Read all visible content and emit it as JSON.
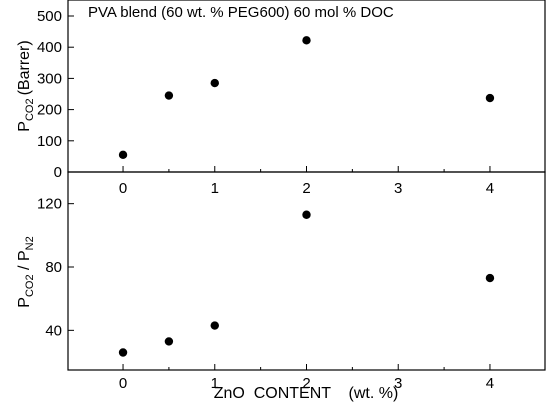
{
  "chart_data": [
    {
      "type": "scatter",
      "title": "PVA blend (60 wt. % PEG600) 60 mol % DOC",
      "ylabel_main": "P",
      "ylabel_sub": "CO2",
      "ylabel_unit": "(Barrer)",
      "xlim": [
        -0.6,
        4.6
      ],
      "ylim": [
        0,
        500
      ],
      "xticks": [
        "0",
        "1",
        "2",
        "3",
        "4"
      ],
      "yticks": [
        "0",
        "100",
        "200",
        "300",
        "400",
        "500"
      ],
      "marker_color": "#000000",
      "points": [
        {
          "x": 0,
          "y": 55
        },
        {
          "x": 0.5,
          "y": 245
        },
        {
          "x": 1,
          "y": 285
        },
        {
          "x": 2,
          "y": 422
        },
        {
          "x": 4,
          "y": 237
        }
      ]
    },
    {
      "type": "scatter",
      "ylabel_p1": "P",
      "ylabel_sub1": "CO2",
      "ylabel_sep": " / P",
      "ylabel_sub2": "N2",
      "xlabel": "ZnO  CONTENT    (wt. %)",
      "xlim": [
        -0.6,
        4.6
      ],
      "ylim": [
        20,
        140
      ],
      "xticks": [
        "0",
        "1",
        "2",
        "3",
        "4"
      ],
      "yticks": [
        "40",
        "80",
        "120"
      ],
      "marker_color": "#000000",
      "points": [
        {
          "x": 0,
          "y": 26
        },
        {
          "x": 0.5,
          "y": 33
        },
        {
          "x": 1,
          "y": 43
        },
        {
          "x": 2,
          "y": 113
        },
        {
          "x": 4,
          "y": 73
        }
      ]
    }
  ]
}
